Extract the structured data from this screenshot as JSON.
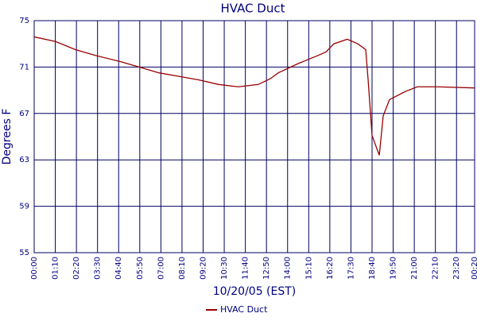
{
  "chart_data": {
    "type": "line",
    "title": "HVAC Duct",
    "x_label": "10/20/05 (EST)",
    "y_label": "Degrees F",
    "x": [
      0,
      71,
      137,
      203,
      282,
      348,
      414,
      480,
      545,
      611,
      677,
      743,
      783,
      809,
      875,
      941,
      967,
      993,
      1038,
      1073,
      1099,
      1107,
      1120,
      1144,
      1157,
      1178,
      1231,
      1270,
      1336,
      1460
    ],
    "series": [
      {
        "name": "HVAC Duct",
        "color": "#990000",
        "values": [
          73.6,
          73.2,
          72.5,
          72.0,
          71.5,
          71.0,
          70.5,
          70.2,
          69.9,
          69.5,
          69.3,
          69.5,
          70.0,
          70.5,
          71.3,
          72.0,
          72.3,
          73.0,
          73.4,
          73.0,
          72.5,
          69.9,
          65.1,
          63.4,
          66.8,
          68.2,
          68.9,
          69.3,
          69.3,
          69.2
        ]
      }
    ],
    "xlim": [
      0,
      1460
    ],
    "xticks": [
      {
        "value": 0,
        "label": "00:00"
      },
      {
        "value": 70,
        "label": "01:10"
      },
      {
        "value": 140,
        "label": "02:20"
      },
      {
        "value": 210,
        "label": "03:30"
      },
      {
        "value": 280,
        "label": "04:40"
      },
      {
        "value": 350,
        "label": "05:50"
      },
      {
        "value": 420,
        "label": "07:00"
      },
      {
        "value": 490,
        "label": "08:10"
      },
      {
        "value": 560,
        "label": "09:20"
      },
      {
        "value": 630,
        "label": "10:30"
      },
      {
        "value": 700,
        "label": "11:40"
      },
      {
        "value": 770,
        "label": "12:50"
      },
      {
        "value": 840,
        "label": "14:00"
      },
      {
        "value": 910,
        "label": "15:10"
      },
      {
        "value": 980,
        "label": "16:20"
      },
      {
        "value": 1050,
        "label": "17:30"
      },
      {
        "value": 1120,
        "label": "18:40"
      },
      {
        "value": 1190,
        "label": "19:50"
      },
      {
        "value": 1260,
        "label": "21:00"
      },
      {
        "value": 1330,
        "label": "22:10"
      },
      {
        "value": 1400,
        "label": "23:20"
      },
      {
        "value": 1460,
        "label": "00:20"
      }
    ],
    "ylim": [
      55,
      75
    ],
    "yticks": [
      55,
      59,
      63,
      67,
      71,
      75
    ],
    "grid": true
  }
}
